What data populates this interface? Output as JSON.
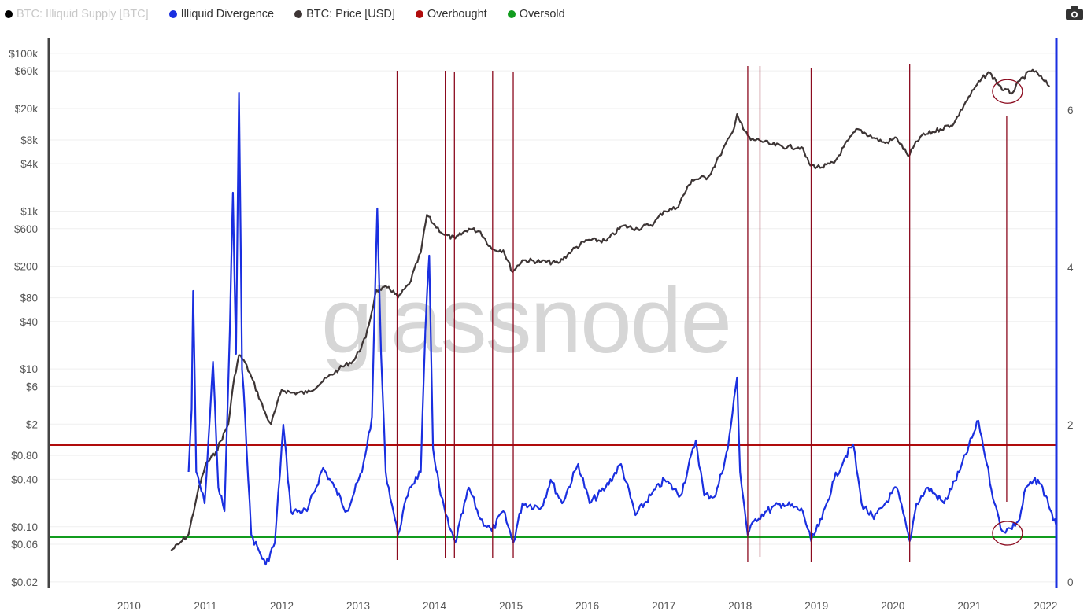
{
  "legend": [
    {
      "label": "BTC: Illiquid Supply [BTC]",
      "color": "#000000",
      "hidden": true
    },
    {
      "label": "Illiquid Divergence",
      "color": "#1a2fe0",
      "hidden": false
    },
    {
      "label": "BTC: Price [USD]",
      "color": "#3d3535",
      "hidden": false
    },
    {
      "label": "Overbought",
      "color": "#b00c0c",
      "hidden": false
    },
    {
      "label": "Oversold",
      "color": "#119c1e",
      "hidden": false
    }
  ],
  "toolbar": {
    "camera_icon": "camera-icon"
  },
  "watermark": "glassnode",
  "chart_data": {
    "type": "line",
    "title": "",
    "xlabel": "",
    "x_ticks": [
      "2010",
      "2011",
      "2012",
      "2013",
      "2014",
      "2015",
      "2016",
      "2017",
      "2018",
      "2019",
      "2020",
      "2021",
      "2022"
    ],
    "xlim": [
      2008.95,
      2022.14
    ],
    "left_axis": {
      "scale": "log",
      "ylim": [
        0.0166,
        158000
      ],
      "ticks": [
        {
          "v": 100000,
          "label": "$100k"
        },
        {
          "v": 60000,
          "label": "$60k"
        },
        {
          "v": 20000,
          "label": "$20k"
        },
        {
          "v": 8000,
          "label": "$8k"
        },
        {
          "v": 4000,
          "label": "$4k"
        },
        {
          "v": 1000,
          "label": "$1k"
        },
        {
          "v": 600,
          "label": "$600"
        },
        {
          "v": 200,
          "label": "$200"
        },
        {
          "v": 80,
          "label": "$80"
        },
        {
          "v": 40,
          "label": "$40"
        },
        {
          "v": 10,
          "label": "$10"
        },
        {
          "v": 6,
          "label": "$6"
        },
        {
          "v": 2,
          "label": "$2"
        },
        {
          "v": 0.8,
          "label": "$0.80"
        },
        {
          "v": 0.4,
          "label": "$0.40"
        },
        {
          "v": 0.1,
          "label": "$0.10"
        },
        {
          "v": 0.06,
          "label": "$0.06"
        },
        {
          "v": 0.02,
          "label": "$0.02"
        }
      ]
    },
    "right_axis": {
      "scale": "linear",
      "ylim": [
        -0.08,
        6.92
      ],
      "ticks": [
        {
          "v": 0,
          "label": "0"
        },
        {
          "v": 2,
          "label": "2"
        },
        {
          "v": 4,
          "label": "4"
        },
        {
          "v": 6,
          "label": "6"
        }
      ],
      "color": "#1a2fe0"
    },
    "grid": true,
    "legend_position": "top-left",
    "series": [
      {
        "name": "BTC: Price [USD]",
        "axis": "left",
        "color": "#3d3535",
        "points": [
          [
            2010.55,
            0.05
          ],
          [
            2010.65,
            0.06
          ],
          [
            2010.78,
            0.08
          ],
          [
            2010.89,
            0.25
          ],
          [
            2011.0,
            0.6
          ],
          [
            2011.14,
            0.9
          ],
          [
            2011.3,
            2
          ],
          [
            2011.38,
            8
          ],
          [
            2011.44,
            15
          ],
          [
            2011.5,
            13
          ],
          [
            2011.6,
            8
          ],
          [
            2011.8,
            2.5
          ],
          [
            2011.86,
            2
          ],
          [
            2012.0,
            5.5
          ],
          [
            2012.12,
            5
          ],
          [
            2012.33,
            5
          ],
          [
            2012.54,
            7
          ],
          [
            2012.75,
            10
          ],
          [
            2012.95,
            13
          ],
          [
            2013.1,
            25
          ],
          [
            2013.24,
            100
          ],
          [
            2013.3,
            100
          ],
          [
            2013.4,
            110
          ],
          [
            2013.52,
            80
          ],
          [
            2013.67,
            120
          ],
          [
            2013.82,
            300
          ],
          [
            2013.9,
            900
          ],
          [
            2013.98,
            700
          ],
          [
            2014.13,
            500
          ],
          [
            2014.27,
            450
          ],
          [
            2014.45,
            600
          ],
          [
            2014.6,
            550
          ],
          [
            2014.75,
            330
          ],
          [
            2014.9,
            320
          ],
          [
            2015.02,
            170
          ],
          [
            2015.15,
            240
          ],
          [
            2015.4,
            230
          ],
          [
            2015.62,
            220
          ],
          [
            2015.8,
            320
          ],
          [
            2016.0,
            430
          ],
          [
            2016.25,
            420
          ],
          [
            2016.46,
            650
          ],
          [
            2016.66,
            600
          ],
          [
            2016.87,
            700
          ],
          [
            2017.0,
            1000
          ],
          [
            2017.17,
            1100
          ],
          [
            2017.37,
            2500
          ],
          [
            2017.58,
            2700
          ],
          [
            2017.73,
            5000
          ],
          [
            2017.9,
            10000
          ],
          [
            2017.96,
            17000
          ],
          [
            2018.04,
            11000
          ],
          [
            2018.14,
            8000
          ],
          [
            2018.25,
            8000
          ],
          [
            2018.4,
            7000
          ],
          [
            2018.62,
            6500
          ],
          [
            2018.8,
            6500
          ],
          [
            2018.92,
            3800
          ],
          [
            2019.07,
            3600
          ],
          [
            2019.23,
            4100
          ],
          [
            2019.42,
            8000
          ],
          [
            2019.54,
            11000
          ],
          [
            2019.75,
            8500
          ],
          [
            2019.9,
            7300
          ],
          [
            2020.05,
            8500
          ],
          [
            2020.2,
            5000
          ],
          [
            2020.36,
            8800
          ],
          [
            2020.62,
            11000
          ],
          [
            2020.8,
            13000
          ],
          [
            2020.95,
            24000
          ],
          [
            2021.1,
            40000
          ],
          [
            2021.25,
            58000
          ],
          [
            2021.35,
            45000
          ],
          [
            2021.45,
            34000
          ],
          [
            2021.57,
            32000
          ],
          [
            2021.66,
            45000
          ],
          [
            2021.83,
            62000
          ],
          [
            2021.96,
            47000
          ],
          [
            2022.05,
            38000
          ]
        ]
      },
      {
        "name": "Illiquid Divergence",
        "axis": "right",
        "color": "#1a2fe0",
        "points": [
          [
            2010.78,
            1.4
          ],
          [
            2010.82,
            2.2
          ],
          [
            2010.84,
            3.7
          ],
          [
            2010.88,
            1.4
          ],
          [
            2010.99,
            1.0
          ],
          [
            2011.04,
            1.8
          ],
          [
            2011.1,
            2.8
          ],
          [
            2011.17,
            1.2
          ],
          [
            2011.25,
            0.9
          ],
          [
            2011.32,
            3.2
          ],
          [
            2011.36,
            4.95
          ],
          [
            2011.4,
            2.9
          ],
          [
            2011.44,
            6.22
          ],
          [
            2011.48,
            2.7
          ],
          [
            2011.52,
            2.1
          ],
          [
            2011.6,
            0.6
          ],
          [
            2011.7,
            0.4
          ],
          [
            2011.79,
            0.22
          ],
          [
            2011.91,
            0.5
          ],
          [
            2012.02,
            2.0
          ],
          [
            2012.12,
            0.9
          ],
          [
            2012.33,
            0.9
          ],
          [
            2012.54,
            1.45
          ],
          [
            2012.69,
            1.2
          ],
          [
            2012.85,
            0.9
          ],
          [
            2013.05,
            1.4
          ],
          [
            2013.18,
            2.1
          ],
          [
            2013.25,
            4.75
          ],
          [
            2013.3,
            2.9
          ],
          [
            2013.36,
            1.4
          ],
          [
            2013.46,
            0.9
          ],
          [
            2013.52,
            0.6
          ],
          [
            2013.67,
            1.2
          ],
          [
            2013.82,
            1.4
          ],
          [
            2013.88,
            3.2
          ],
          [
            2013.93,
            4.15
          ],
          [
            2013.98,
            1.7
          ],
          [
            2014.08,
            1.1
          ],
          [
            2014.19,
            0.7
          ],
          [
            2014.27,
            0.5
          ],
          [
            2014.45,
            1.2
          ],
          [
            2014.6,
            0.8
          ],
          [
            2014.75,
            0.65
          ],
          [
            2014.9,
            0.9
          ],
          [
            2015.03,
            0.5
          ],
          [
            2015.15,
            1.0
          ],
          [
            2015.4,
            0.95
          ],
          [
            2015.52,
            1.3
          ],
          [
            2015.67,
            1.0
          ],
          [
            2015.88,
            1.5
          ],
          [
            2016.03,
            1.0
          ],
          [
            2016.24,
            1.2
          ],
          [
            2016.44,
            1.5
          ],
          [
            2016.63,
            0.85
          ],
          [
            2016.83,
            1.1
          ],
          [
            2017.01,
            1.3
          ],
          [
            2017.22,
            1.1
          ],
          [
            2017.42,
            1.8
          ],
          [
            2017.53,
            1.1
          ],
          [
            2017.68,
            1.1
          ],
          [
            2017.84,
            1.7
          ],
          [
            2017.96,
            2.6
          ],
          [
            2018.0,
            1.4
          ],
          [
            2018.1,
            0.6
          ],
          [
            2018.2,
            0.8
          ],
          [
            2018.35,
            0.9
          ],
          [
            2018.56,
            1.0
          ],
          [
            2018.82,
            0.9
          ],
          [
            2018.93,
            0.52
          ],
          [
            2019.07,
            0.8
          ],
          [
            2019.23,
            1.3
          ],
          [
            2019.38,
            1.6
          ],
          [
            2019.48,
            1.75
          ],
          [
            2019.59,
            1.0
          ],
          [
            2019.75,
            0.8
          ],
          [
            2019.9,
            1.0
          ],
          [
            2020.05,
            1.2
          ],
          [
            2020.22,
            0.52
          ],
          [
            2020.31,
            1.0
          ],
          [
            2020.46,
            1.2
          ],
          [
            2020.67,
            1.0
          ],
          [
            2020.87,
            1.4
          ],
          [
            2021.12,
            2.05
          ],
          [
            2021.23,
            1.5
          ],
          [
            2021.33,
            1.0
          ],
          [
            2021.43,
            0.65
          ],
          [
            2021.54,
            0.68
          ],
          [
            2021.66,
            0.8
          ],
          [
            2021.74,
            1.2
          ],
          [
            2021.9,
            1.3
          ],
          [
            2022.0,
            1.1
          ],
          [
            2022.14,
            0.7
          ]
        ]
      }
    ],
    "thresholds": [
      {
        "name": "Overbought",
        "axis": "right",
        "value": 1.74,
        "color": "#b00c0c"
      },
      {
        "name": "Oversold",
        "axis": "right",
        "value": 0.57,
        "color": "#119c1e"
      }
    ],
    "signal_lines": {
      "axis": "right",
      "color": "#8b0a1e",
      "lines": [
        {
          "x": 2013.51,
          "from": 0.28,
          "to": 6.5
        },
        {
          "x": 2014.14,
          "from": 0.3,
          "to": 6.5
        },
        {
          "x": 2014.26,
          "from": 0.3,
          "to": 6.48
        },
        {
          "x": 2014.76,
          "from": 0.3,
          "to": 6.5
        },
        {
          "x": 2015.03,
          "from": 0.3,
          "to": 6.48
        },
        {
          "x": 2018.1,
          "from": 0.26,
          "to": 6.56
        },
        {
          "x": 2018.26,
          "from": 0.32,
          "to": 6.56
        },
        {
          "x": 2018.93,
          "from": 0.26,
          "to": 6.54
        },
        {
          "x": 2020.22,
          "from": 0.26,
          "to": 6.58
        },
        {
          "x": 2021.49,
          "from": 1.02,
          "to": 5.92
        }
      ]
    },
    "annotations": [
      {
        "type": "ellipse",
        "x": 2021.5,
        "axis": "left",
        "value": 33000,
        "color": "#8b0a1e"
      },
      {
        "type": "ellipse",
        "x": 2021.5,
        "axis": "right",
        "value": 0.62,
        "color": "#8b0a1e"
      }
    ]
  }
}
